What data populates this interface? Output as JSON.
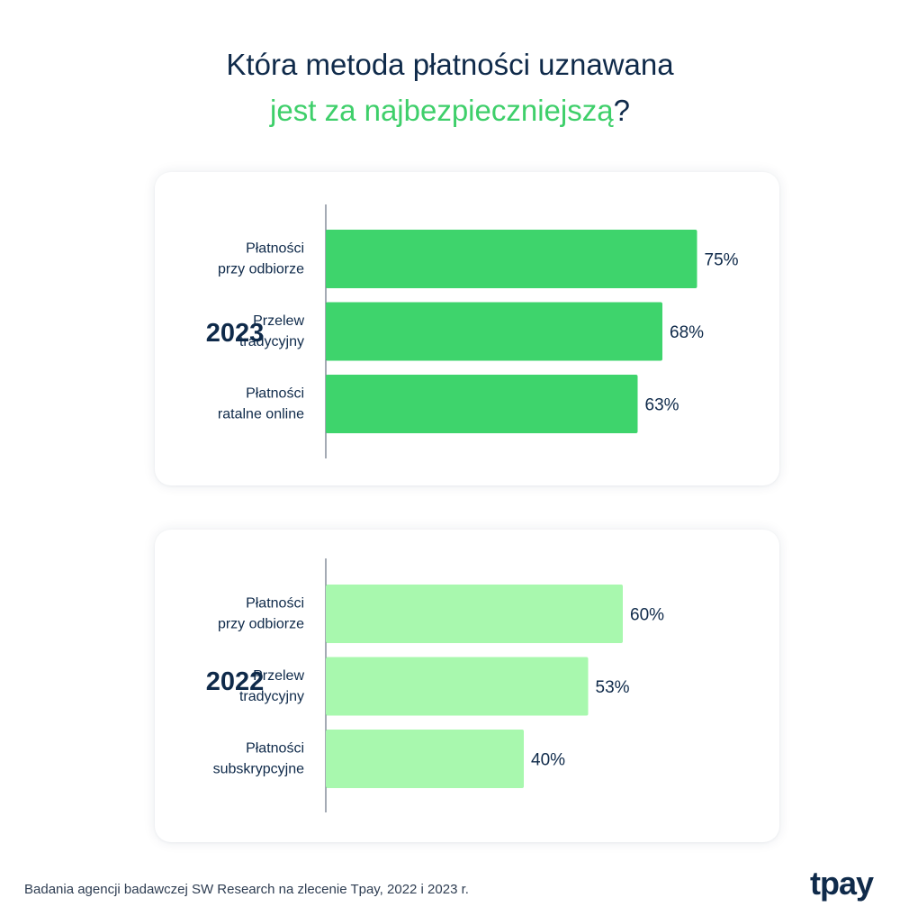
{
  "title": {
    "line1": "Która metoda płatności uznawana",
    "line2_highlight": "jest za najbezpieczniejszą",
    "line2_end": "?"
  },
  "colors": {
    "dark_navy": "#0f2a4a",
    "bar_2023": "#3ed46c",
    "bar_2022": "#a8f8ae",
    "highlight": "#3ecf6a"
  },
  "chart_data": [
    {
      "type": "bar",
      "orientation": "horizontal",
      "group_label": "2023",
      "categories": [
        [
          "Płatności",
          "przy odbiorze"
        ],
        [
          "Przelew",
          "tradycyjny"
        ],
        [
          "Płatności",
          "ratalne online"
        ]
      ],
      "values": [
        75,
        68,
        63
      ],
      "value_labels": [
        "75%",
        "68%",
        "63%"
      ],
      "color": "#3ed46c"
    },
    {
      "type": "bar",
      "orientation": "horizontal",
      "group_label": "2022",
      "categories": [
        [
          "Płatności",
          "przy odbiorze"
        ],
        [
          "Przelew",
          "tradycyjny"
        ],
        [
          "Płatności",
          "subskrypcyjne"
        ]
      ],
      "values": [
        60,
        53,
        40
      ],
      "value_labels": [
        "60%",
        "53%",
        "40%"
      ],
      "color": "#a8f8ae"
    }
  ],
  "footnote": "Badania agencji badawczej SW Research na zlecenie Tpay, 2022 i 2023 r.",
  "logo": "tpay"
}
